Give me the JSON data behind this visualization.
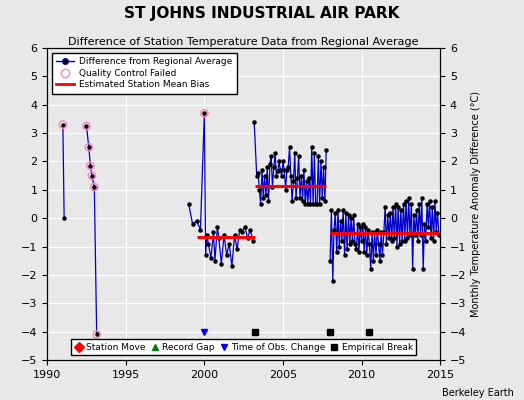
{
  "title": "ST JOHNS INDUSTRIAL AIR PARK",
  "subtitle": "Difference of Station Temperature Data from Regional Average",
  "ylabel_right": "Monthly Temperature Anomaly Difference (°C)",
  "credit": "Berkeley Earth",
  "xlim": [
    1990,
    2015
  ],
  "ylim": [
    -5,
    6
  ],
  "bg_color": "#e8e8e8",
  "grid_color": "#ffffff",
  "line_color": "#0000cc",
  "marker_color": "#000000",
  "qc_color": "#ff80c0",
  "bias_color": "#ff0000",
  "vertical_lines": [
    1992.5,
    2007.75
  ],
  "empirical_break_years": [
    2003.25,
    2008.0,
    2010.5
  ],
  "time_of_obs_years": [
    2000.0
  ],
  "bias_segments": [
    {
      "x_start": 1999.5,
      "x_end": 2003.25,
      "y": -0.65
    },
    {
      "x_start": 2003.25,
      "x_end": 2007.75,
      "y": 1.15
    },
    {
      "x_start": 2008.0,
      "x_end": 2014.9,
      "y": -0.52
    }
  ],
  "qc_failed_points": [
    [
      1991.0,
      3.3
    ],
    [
      1992.5,
      3.25
    ],
    [
      1992.65,
      2.5
    ],
    [
      1992.75,
      1.85
    ],
    [
      1992.85,
      1.5
    ],
    [
      1993.0,
      1.1
    ],
    [
      1993.15,
      -4.1
    ],
    [
      2000.0,
      3.7
    ]
  ],
  "segment1_data": [
    [
      1991.0,
      3.3
    ],
    [
      1991.08,
      0.0
    ]
  ],
  "segment2_data": [
    [
      1992.5,
      3.25
    ],
    [
      1992.65,
      2.5
    ],
    [
      1992.75,
      1.85
    ],
    [
      1992.85,
      1.5
    ],
    [
      1993.0,
      1.1
    ],
    [
      1993.15,
      -4.1
    ]
  ],
  "segment3_data": [
    [
      1999.0,
      0.5
    ],
    [
      1999.25,
      -0.2
    ],
    [
      1999.5,
      -0.1
    ],
    [
      1999.75,
      -0.4
    ],
    [
      2000.0,
      3.7
    ],
    [
      2000.08,
      -1.3
    ],
    [
      2000.17,
      -0.6
    ],
    [
      2000.25,
      -0.9
    ],
    [
      2000.42,
      -1.4
    ],
    [
      2000.58,
      -0.5
    ],
    [
      2000.67,
      -1.5
    ],
    [
      2000.83,
      -0.3
    ],
    [
      2000.92,
      -0.7
    ],
    [
      2001.08,
      -1.6
    ],
    [
      2001.25,
      -0.6
    ],
    [
      2001.42,
      -1.3
    ],
    [
      2001.58,
      -0.9
    ],
    [
      2001.75,
      -1.7
    ],
    [
      2001.92,
      -0.6
    ],
    [
      2002.08,
      -1.1
    ],
    [
      2002.25,
      -0.4
    ],
    [
      2002.42,
      -0.5
    ],
    [
      2002.58,
      -0.3
    ],
    [
      2002.75,
      -0.7
    ],
    [
      2002.92,
      -0.4
    ],
    [
      2003.08,
      -0.8
    ]
  ],
  "segment4_data": [
    [
      2003.17,
      3.4
    ],
    [
      2003.33,
      1.5
    ],
    [
      2003.42,
      1.6
    ],
    [
      2003.5,
      1.0
    ],
    [
      2003.58,
      0.5
    ],
    [
      2003.67,
      1.7
    ],
    [
      2003.75,
      0.7
    ],
    [
      2003.83,
      1.5
    ],
    [
      2003.92,
      0.8
    ],
    [
      2004.0,
      1.8
    ],
    [
      2004.08,
      0.6
    ],
    [
      2004.17,
      1.9
    ],
    [
      2004.25,
      2.2
    ],
    [
      2004.33,
      1.1
    ],
    [
      2004.42,
      1.8
    ],
    [
      2004.5,
      2.3
    ],
    [
      2004.58,
      1.5
    ],
    [
      2004.67,
      1.65
    ],
    [
      2004.75,
      2.0
    ],
    [
      2004.83,
      1.7
    ],
    [
      2004.92,
      1.5
    ],
    [
      2005.0,
      2.0
    ],
    [
      2005.08,
      1.7
    ],
    [
      2005.17,
      1.0
    ],
    [
      2005.25,
      1.7
    ],
    [
      2005.33,
      1.8
    ],
    [
      2005.42,
      2.5
    ],
    [
      2005.5,
      1.5
    ],
    [
      2005.58,
      0.6
    ],
    [
      2005.67,
      1.3
    ],
    [
      2005.75,
      2.3
    ],
    [
      2005.83,
      0.7
    ],
    [
      2005.92,
      1.4
    ],
    [
      2006.0,
      2.2
    ],
    [
      2006.08,
      0.7
    ],
    [
      2006.17,
      1.5
    ],
    [
      2006.25,
      0.6
    ],
    [
      2006.33,
      1.7
    ],
    [
      2006.42,
      0.5
    ],
    [
      2006.5,
      1.3
    ],
    [
      2006.58,
      0.5
    ],
    [
      2006.67,
      1.4
    ],
    [
      2006.75,
      0.5
    ],
    [
      2006.83,
      2.5
    ],
    [
      2006.92,
      0.5
    ],
    [
      2007.0,
      2.3
    ],
    [
      2007.08,
      0.5
    ],
    [
      2007.17,
      0.5
    ],
    [
      2007.25,
      2.2
    ],
    [
      2007.33,
      0.5
    ],
    [
      2007.42,
      2.0
    ],
    [
      2007.5,
      0.7
    ],
    [
      2007.58,
      1.8
    ],
    [
      2007.67,
      0.6
    ],
    [
      2007.75,
      2.4
    ]
  ],
  "segment5_data": [
    [
      2008.0,
      -1.5
    ],
    [
      2008.08,
      0.3
    ],
    [
      2008.17,
      -2.2
    ],
    [
      2008.25,
      -0.4
    ],
    [
      2008.33,
      0.2
    ],
    [
      2008.42,
      -1.2
    ],
    [
      2008.5,
      0.3
    ],
    [
      2008.58,
      -1.0
    ],
    [
      2008.67,
      -0.1
    ],
    [
      2008.75,
      -0.8
    ],
    [
      2008.83,
      0.3
    ],
    [
      2008.92,
      -1.3
    ],
    [
      2009.0,
      0.2
    ],
    [
      2009.08,
      -1.1
    ],
    [
      2009.17,
      0.1
    ],
    [
      2009.25,
      -0.9
    ],
    [
      2009.33,
      0.0
    ],
    [
      2009.42,
      -0.8
    ],
    [
      2009.5,
      0.1
    ],
    [
      2009.58,
      -0.9
    ],
    [
      2009.67,
      -1.1
    ],
    [
      2009.75,
      -0.2
    ],
    [
      2009.83,
      -1.2
    ],
    [
      2009.92,
      -0.3
    ],
    [
      2010.0,
      -0.8
    ],
    [
      2010.08,
      -0.2
    ],
    [
      2010.17,
      -1.2
    ],
    [
      2010.25,
      -0.3
    ],
    [
      2010.33,
      -1.3
    ],
    [
      2010.42,
      -0.4
    ],
    [
      2010.5,
      -0.9
    ],
    [
      2010.58,
      -1.8
    ],
    [
      2010.67,
      -0.5
    ],
    [
      2010.75,
      -1.5
    ],
    [
      2010.83,
      -0.5
    ],
    [
      2010.92,
      -1.3
    ],
    [
      2011.0,
      -0.4
    ],
    [
      2011.08,
      -0.9
    ],
    [
      2011.17,
      -1.5
    ],
    [
      2011.25,
      -0.5
    ],
    [
      2011.33,
      -1.3
    ],
    [
      2011.42,
      -0.5
    ],
    [
      2011.5,
      0.4
    ],
    [
      2011.58,
      -0.9
    ],
    [
      2011.67,
      0.1
    ],
    [
      2011.75,
      -0.7
    ],
    [
      2011.83,
      0.2
    ],
    [
      2011.92,
      -0.8
    ],
    [
      2012.0,
      0.4
    ],
    [
      2012.08,
      -0.7
    ],
    [
      2012.17,
      0.5
    ],
    [
      2012.25,
      -1.0
    ],
    [
      2012.33,
      0.4
    ],
    [
      2012.42,
      -0.9
    ],
    [
      2012.5,
      0.3
    ],
    [
      2012.58,
      -0.8
    ],
    [
      2012.67,
      0.5
    ],
    [
      2012.75,
      -0.8
    ],
    [
      2012.83,
      0.6
    ],
    [
      2012.92,
      -0.7
    ],
    [
      2013.0,
      0.7
    ],
    [
      2013.08,
      -0.6
    ],
    [
      2013.17,
      0.5
    ],
    [
      2013.25,
      -1.8
    ],
    [
      2013.33,
      0.1
    ],
    [
      2013.42,
      -0.6
    ],
    [
      2013.5,
      0.3
    ],
    [
      2013.58,
      -0.8
    ],
    [
      2013.67,
      0.5
    ],
    [
      2013.75,
      -0.6
    ],
    [
      2013.83,
      0.7
    ],
    [
      2013.92,
      -1.8
    ],
    [
      2014.0,
      -0.2
    ],
    [
      2014.08,
      -0.8
    ],
    [
      2014.17,
      0.5
    ],
    [
      2014.25,
      -0.3
    ],
    [
      2014.33,
      0.6
    ],
    [
      2014.42,
      -0.7
    ],
    [
      2014.5,
      0.4
    ],
    [
      2014.58,
      -0.8
    ],
    [
      2014.67,
      0.6
    ],
    [
      2014.75,
      -0.5
    ],
    [
      2014.83,
      0.2
    ],
    [
      2014.92,
      -0.6
    ]
  ]
}
